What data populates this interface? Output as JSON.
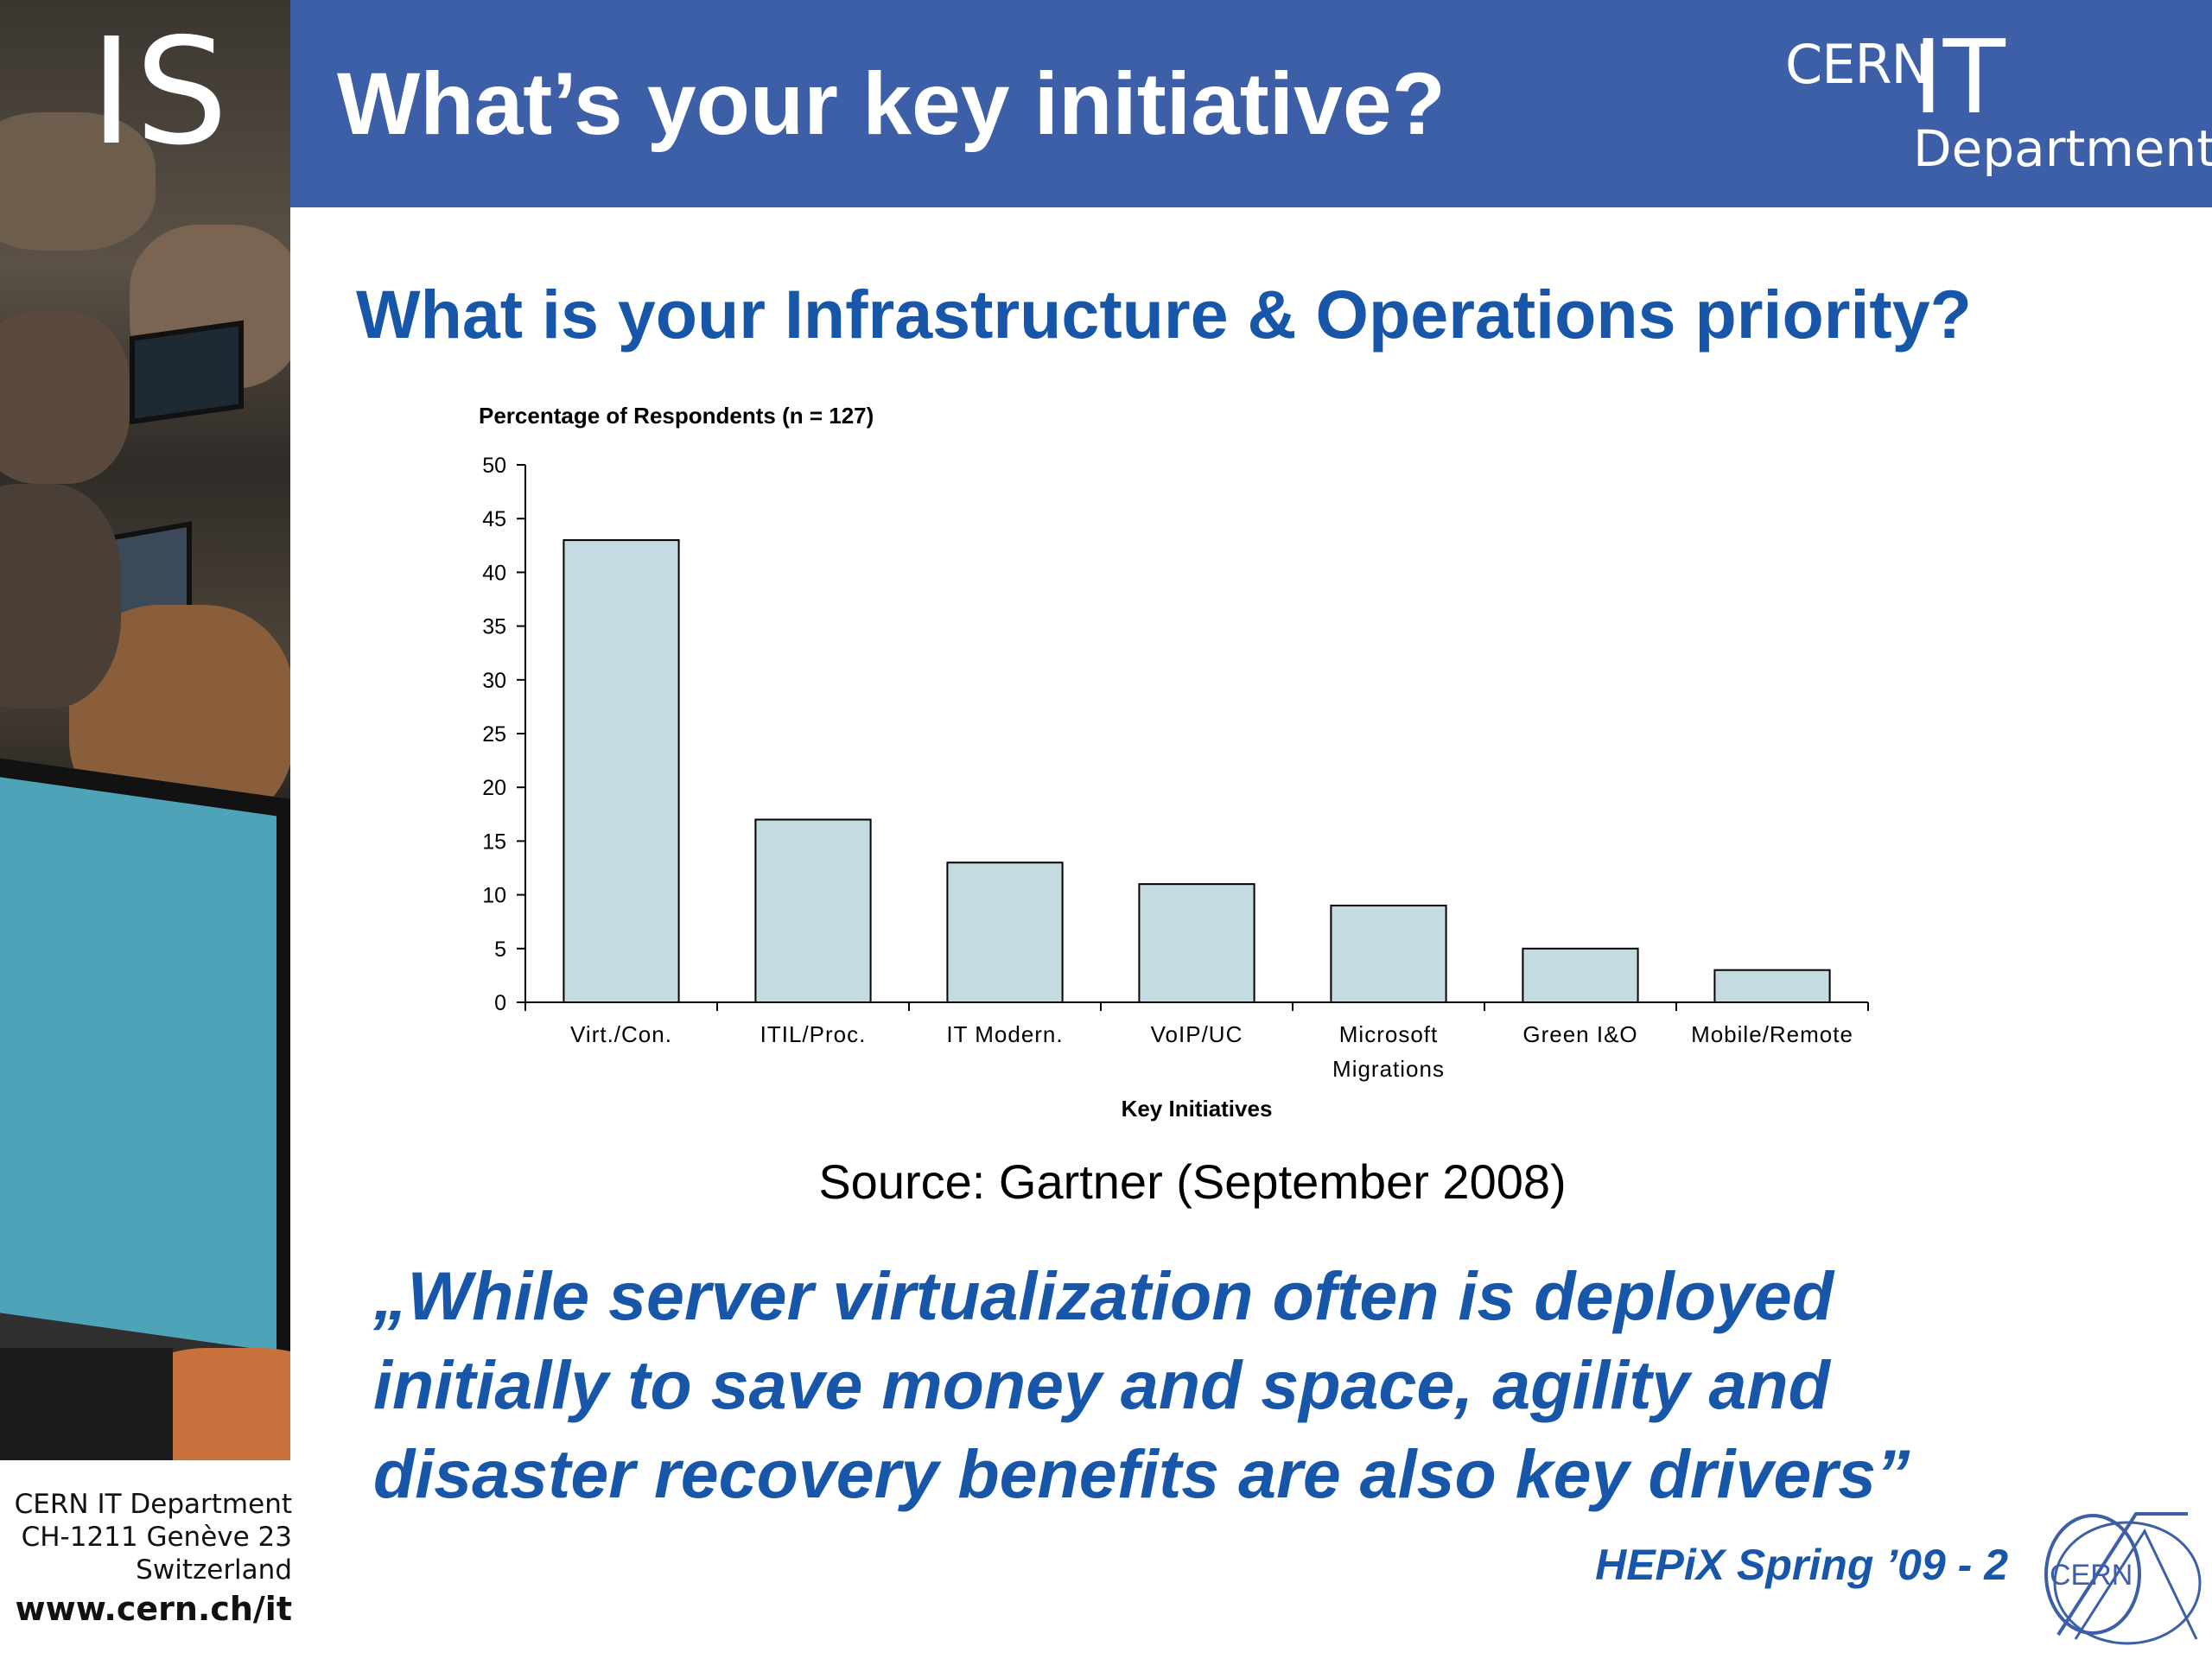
{
  "header": {
    "title": "What’s your key initiative?",
    "side_mark": "IS",
    "logo": {
      "cern": "CERN",
      "it": "IT",
      "department": "Department"
    }
  },
  "subtitle": "What is your Infrastructure & Operations priority?",
  "chart_data": {
    "type": "bar",
    "ylabel": "Percentage of Respondents (n = 127)",
    "xlabel": "Key Initiatives",
    "ylim": [
      0,
      50
    ],
    "yticks": [
      0,
      5,
      10,
      15,
      20,
      25,
      30,
      35,
      40,
      45,
      50
    ],
    "categories": [
      [
        "Virt./Con."
      ],
      [
        "ITIL/Proc."
      ],
      [
        "IT Modern."
      ],
      [
        "VoIP/UC"
      ],
      [
        "Microsoft",
        "Migrations"
      ],
      [
        "Green I&O"
      ],
      [
        "Mobile/Remote"
      ]
    ],
    "values": [
      43,
      17,
      13,
      11,
      9,
      5,
      3
    ],
    "bar_color": "#c5dbe2",
    "grid": false
  },
  "source": "Source: Gartner (September 2008)",
  "quote": {
    "lines": [
      "„While server virtualization often is deployed",
      "initially to save money and space, agility and",
      "disaster recovery benefits are also key drivers”"
    ]
  },
  "footer": {
    "address": [
      "CERN IT Department",
      "CH-1211 Genève 23",
      "Switzerland"
    ],
    "url": "www.cern.ch/it",
    "event": "HEPiX Spring ’09 - 2",
    "seal_text": "CERN"
  },
  "colors": {
    "header_blue": "#3c5fa8",
    "text_blue": "#1756a8"
  }
}
